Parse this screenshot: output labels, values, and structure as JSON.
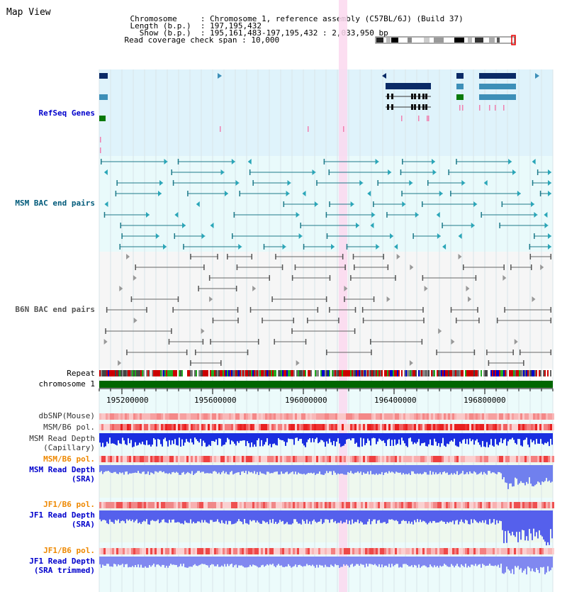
{
  "app": {
    "title": "Map View"
  },
  "info": {
    "chromosome_label": "Chromosome",
    "chromosome_value": "Chromosome 1, reference assembly (C57BL/6J) (Build 37)",
    "length_label": "Length (b.p.)",
    "length_value": "197,195,432",
    "show_label": "Show (b.p.)",
    "show_value": "195,161,483-197,195,432 : 2,033,950 bp",
    "coverage_label": "Read coverage check span",
    "coverage_value": "10,000"
  },
  "tracks": {
    "refseq": "RefSeq Genes",
    "msm_bac": "MSM BAC end pairs",
    "b6n_bac": "B6N BAC end pairs",
    "repeat": "Repeat",
    "chromosome": "chromosome 1",
    "dbsnp": "dbSNP(Mouse)",
    "msm_b6_pol_1": "MSM/B6 pol.",
    "msm_depth_cap_1": "MSM Read Depth",
    "msm_depth_cap_2": "(Capillary)",
    "msm_b6_pol_2": "MSM/B6 pol.",
    "msm_depth_sra_1": "MSM Read Depth",
    "msm_depth_sra_2": "(SRA)",
    "jf1_b6_pol_1": "JF1/B6 pol.",
    "jf1_depth_sra_1": "JF1 Read Depth",
    "jf1_depth_sra_2": "(SRA)",
    "jf1_b6_pol_2": "JF1/B6 pol.",
    "jf1_depth_trim_1": "JF1 Read Depth",
    "jf1_depth_trim_2": "(SRA trimmed)"
  },
  "axis": {
    "ticks": [
      "195200000",
      "195600000",
      "196000000",
      "196400000",
      "196800000"
    ]
  },
  "colors": {
    "refseq_label": "#0000cc",
    "msm_bac_label": "#005a7a",
    "b6n_bac_label": "#555555",
    "pol_label": "#ee8800",
    "depth_label": "#0000cc",
    "refseq_bg": "#dff3fb",
    "msm_bg": "#e9fafb",
    "b6n_bg": "#f6f6f6",
    "chromosome_bar": "#006600",
    "highlight": "#fbd8ee"
  }
}
